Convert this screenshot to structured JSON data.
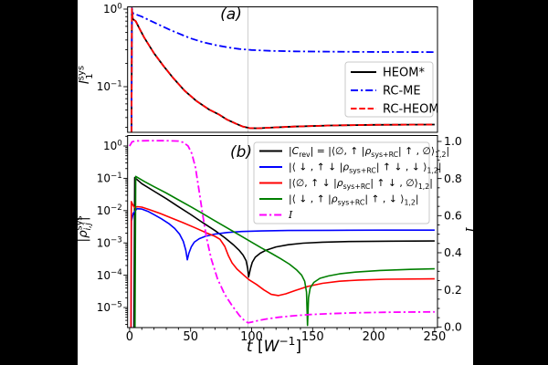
{
  "figure": {
    "background": "#000000",
    "paper_color": "#ffffff",
    "gridline_color": "#c9c9c9",
    "panel_a_letter": "(a)",
    "panel_b_letter": "(b)"
  },
  "axes": {
    "xlabel": "t [W^-1]",
    "xlabel_segments": [
      {
        "t": "t",
        "i": 1
      },
      {
        "t": " ["
      },
      {
        "t": "W",
        "i": 1
      },
      {
        "t": "−1",
        "v": "sup"
      },
      {
        "t": "]"
      }
    ],
    "x_ticks": [
      0,
      50,
      100,
      150,
      200,
      250
    ],
    "x_minor_step": 10,
    "panel_a_ylabel": "l_1^sys",
    "panel_a_ylabel_segments": [
      {
        "t": "l",
        "i": 1
      },
      {
        "t": "sys",
        "v": "sup"
      },
      {
        "t": "1",
        "v": "sub",
        "dx": -15
      }
    ],
    "panel_a_yticks_exp": [
      0,
      -1
    ],
    "panel_b_ylabel": "|rho_i,j^sys|",
    "panel_b_ylabel_segments": [
      {
        "t": "|"
      },
      {
        "t": "ρ",
        "i": 1
      },
      {
        "t": "sys",
        "v": "sup"
      },
      {
        "t": "i,j",
        "v": "sub",
        "dx": -16,
        "i": 1
      },
      {
        "t": "|",
        "dx": 2
      }
    ],
    "panel_b_yticks_exp": [
      0,
      -1,
      -2,
      -3,
      -4,
      -5
    ],
    "right_ylabel": "I",
    "right_ylabel_segments": [
      {
        "t": "I",
        "i": 1,
        "serif": 1
      }
    ],
    "right_ticks": [
      0.0,
      0.2,
      0.4,
      0.6,
      0.8,
      1.0
    ],
    "right_minor_step": 0.05,
    "axvline_t": 97
  },
  "legend_a": {
    "entries": [
      {
        "label": "HEOM*",
        "color": "#000000",
        "dash": "solid"
      },
      {
        "label": "RC-ME",
        "color": "#0000ff",
        "dash": "dashdot"
      },
      {
        "label": "RC-HEOM",
        "color": "#ff0000",
        "dash": "dashed"
      }
    ]
  },
  "legend_b": {
    "entries": [
      {
        "label": "|C_rev| = |<0,up|rho_sys+RC|up,0>_1,2|",
        "color": "#000000",
        "dash": "solid",
        "segments": [
          {
            "t": "|"
          },
          {
            "t": "C",
            "i": 1
          },
          {
            "t": "rev",
            "v": "sub"
          },
          {
            "t": "| = |⟨∅, ↑ |"
          },
          {
            "t": "ρ",
            "i": 1
          },
          {
            "t": "sys+RC",
            "v": "sub"
          },
          {
            "t": "| ↑ , ∅⟩"
          },
          {
            "t": "1,2",
            "v": "sub"
          },
          {
            "t": "|"
          }
        ]
      },
      {
        "label": "|<down, up down|rho_sys+RC|up down, down>_1,2|",
        "color": "#0000ff",
        "dash": "solid",
        "segments": [
          {
            "t": "|⟨ ↓ , ↑ ↓ |"
          },
          {
            "t": "ρ",
            "i": 1
          },
          {
            "t": "sys+RC",
            "v": "sub"
          },
          {
            "t": "| ↑ ↓ , ↓ ⟩"
          },
          {
            "t": "1,2",
            "v": "sub"
          },
          {
            "t": "|"
          }
        ]
      },
      {
        "label": "|<0, up down|rho_sys+RC|up down, 0>_1,2|",
        "color": "#ff0000",
        "dash": "solid",
        "segments": [
          {
            "t": "|⟨∅, ↑ ↓ |"
          },
          {
            "t": "ρ",
            "i": 1
          },
          {
            "t": "sys+RC",
            "v": "sub"
          },
          {
            "t": "| ↑ ↓ , ∅⟩"
          },
          {
            "t": "1,2",
            "v": "sub"
          },
          {
            "t": "|"
          }
        ]
      },
      {
        "label": "|<down, up|rho_sys+RC|up, down>_1,2|",
        "color": "#007f00",
        "dash": "solid",
        "segments": [
          {
            "t": "|⟨ ↓ , ↑ |"
          },
          {
            "t": "ρ",
            "i": 1
          },
          {
            "t": "sys+RC",
            "v": "sub"
          },
          {
            "t": "| ↑ , ↓ ⟩"
          },
          {
            "t": "1,2",
            "v": "sub"
          },
          {
            "t": "|"
          }
        ]
      },
      {
        "label": "I",
        "color": "#ff00ff",
        "dash": "dashdot",
        "segments": [
          {
            "t": "I",
            "i": 1,
            "serif": 1
          }
        ]
      }
    ]
  },
  "chart_data": [
    {
      "type": "line",
      "panel": "a",
      "title": "(a)",
      "ylabel": "l_1^sys",
      "yscale": "log",
      "xlim": [
        -1.6,
        252.3
      ],
      "ylim": [
        0.0258,
        1.07
      ],
      "axvline": 97,
      "legend_position": "center right",
      "series": [
        {
          "name": "HEOM*",
          "color": "#000000",
          "dash": "solid",
          "width": 1.8,
          "axis": "left",
          "points": [
            [
              1.6,
              0.026
            ],
            [
              1.9,
              1.02
            ],
            [
              2.6,
              0.745
            ],
            [
              5,
              0.7
            ],
            [
              8,
              0.565
            ],
            [
              12,
              0.43
            ],
            [
              20,
              0.27
            ],
            [
              28,
              0.183
            ],
            [
              36,
              0.128
            ],
            [
              45,
              0.089
            ],
            [
              55,
              0.065
            ],
            [
              65,
              0.051
            ],
            [
              73,
              0.044
            ],
            [
              80,
              0.0375
            ],
            [
              87,
              0.0335
            ],
            [
              93,
              0.0305
            ],
            [
              98,
              0.0293
            ],
            [
              105,
              0.0291
            ],
            [
              115,
              0.0296
            ],
            [
              135,
              0.0306
            ],
            [
              165,
              0.0316
            ],
            [
              200,
              0.0322
            ],
            [
              250,
              0.0325
            ]
          ]
        },
        {
          "name": "RC-ME",
          "color": "#0000ff",
          "dash": "dashdot",
          "width": 1.8,
          "axis": "left",
          "points": [
            [
              1.6,
              0.026
            ],
            [
              1.9,
              1.03
            ],
            [
              3,
              0.875
            ],
            [
              6,
              0.845
            ],
            [
              10,
              0.8
            ],
            [
              16,
              0.72
            ],
            [
              24,
              0.63
            ],
            [
              32,
              0.55
            ],
            [
              40,
              0.487
            ],
            [
              50,
              0.42
            ],
            [
              60,
              0.375
            ],
            [
              70,
              0.345
            ],
            [
              80,
              0.322
            ],
            [
              90,
              0.306
            ],
            [
              100,
              0.297
            ],
            [
              115,
              0.29
            ],
            [
              135,
              0.285
            ],
            [
              170,
              0.282
            ],
            [
              210,
              0.28
            ],
            [
              250,
              0.279
            ]
          ]
        },
        {
          "name": "RC-HEOM",
          "color": "#ff0000",
          "dash": "dashed",
          "width": 1.8,
          "axis": "left",
          "points_from": 0,
          "points": []
        }
      ]
    },
    {
      "type": "line",
      "panel": "b",
      "title": "(b)",
      "ylabel": "|rho_i,j^sys|",
      "ylabel_right": "I",
      "yscale": "log",
      "xlim": [
        -1.6,
        252.3
      ],
      "ylim": [
        2.44e-06,
        2.05
      ],
      "ylim_right": [
        0.0,
        1.03
      ],
      "axvline": 97,
      "legend_position": "upper right",
      "series": [
        {
          "name": "|C_rev|",
          "color": "#000000",
          "dash": "solid",
          "width": 1.6,
          "axis": "left",
          "points": [
            [
              3.6,
              2.4e-06
            ],
            [
              4.2,
              0.105
            ],
            [
              10,
              0.068
            ],
            [
              20,
              0.04
            ],
            [
              30,
              0.0235
            ],
            [
              40,
              0.0133
            ],
            [
              50,
              0.0076
            ],
            [
              60,
              0.0042
            ],
            [
              70,
              0.0024
            ],
            [
              78,
              0.00145
            ],
            [
              85,
              0.00088
            ],
            [
              90,
              0.00058
            ],
            [
              93,
              0.00042
            ],
            [
              95.5,
              0.00028
            ],
            [
              96.8,
              0.00016
            ],
            [
              97.5,
              8.8e-05
            ],
            [
              99,
              0.00016
            ],
            [
              100.5,
              0.00025
            ],
            [
              103,
              0.00036
            ],
            [
              107,
              0.00048
            ],
            [
              112,
              0.0006
            ],
            [
              120,
              0.00075
            ],
            [
              130,
              0.00088
            ],
            [
              142,
              0.00098
            ],
            [
              158,
              0.00105
            ],
            [
              180,
              0.0011
            ],
            [
              215,
              0.00113
            ],
            [
              250,
              0.00115
            ]
          ]
        },
        {
          "name": "rho(down,updown)",
          "color": "#0000ff",
          "dash": "solid",
          "width": 1.6,
          "axis": "left",
          "points": [
            [
              1.2,
              2.4e-06
            ],
            [
              1.5,
              0.0048
            ],
            [
              3,
              0.0083
            ],
            [
              6,
              0.0115
            ],
            [
              10,
              0.0112
            ],
            [
              15,
              0.0095
            ],
            [
              20,
              0.0075
            ],
            [
              26,
              0.0056
            ],
            [
              32,
              0.004
            ],
            [
              37,
              0.0028
            ],
            [
              41,
              0.00185
            ],
            [
              44,
              0.00112
            ],
            [
              46,
              0.0006
            ],
            [
              47.3,
              0.0003
            ],
            [
              48.6,
              0.00048
            ],
            [
              50.5,
              0.00075
            ],
            [
              53,
              0.00105
            ],
            [
              57,
              0.00135
            ],
            [
              62,
              0.0016
            ],
            [
              70,
              0.00188
            ],
            [
              80,
              0.0021
            ],
            [
              92,
              0.00225
            ],
            [
              108,
              0.00235
            ],
            [
              130,
              0.00242
            ],
            [
              165,
              0.00246
            ],
            [
              210,
              0.00248
            ],
            [
              250,
              0.00249
            ]
          ]
        },
        {
          "name": "rho(0,updown)",
          "color": "#ff0000",
          "dash": "solid",
          "width": 1.6,
          "axis": "left",
          "points": [
            [
              1.1,
              2.4e-06
            ],
            [
              1.4,
              0.019
            ],
            [
              2.5,
              0.0155
            ],
            [
              4,
              0.0125
            ],
            [
              6.5,
              0.0132
            ],
            [
              10,
              0.0128
            ],
            [
              16,
              0.0108
            ],
            [
              25,
              0.0082
            ],
            [
              34,
              0.006
            ],
            [
              44,
              0.0042
            ],
            [
              54,
              0.0029
            ],
            [
              63,
              0.00205
            ],
            [
              70,
              0.0016
            ],
            [
              74,
              0.0013
            ],
            [
              78,
              0.00078
            ],
            [
              81,
              0.0004
            ],
            [
              84,
              0.00024
            ],
            [
              88,
              0.000155
            ],
            [
              93,
              0.000105
            ],
            [
              98,
              7.2e-05
            ],
            [
              104,
              5.2e-05
            ],
            [
              110,
              3.5e-05
            ],
            [
              116,
              2.55e-05
            ],
            [
              122,
              2.35e-05
            ],
            [
              128,
              2.65e-05
            ],
            [
              136,
              3.4e-05
            ],
            [
              146,
              4.5e-05
            ],
            [
              158,
              5.6e-05
            ],
            [
              172,
              6.5e-05
            ],
            [
              188,
              7.1e-05
            ],
            [
              210,
              7.5e-05
            ],
            [
              250,
              7.7e-05
            ]
          ]
        },
        {
          "name": "rho(down,up)",
          "color": "#007f00",
          "dash": "solid",
          "width": 1.6,
          "axis": "left",
          "points": [
            [
              4.4,
              2.4e-06
            ],
            [
              5,
              0.115
            ],
            [
              12,
              0.08
            ],
            [
              20,
              0.055
            ],
            [
              30,
              0.035
            ],
            [
              40,
              0.0215
            ],
            [
              50,
              0.0133
            ],
            [
              60,
              0.008
            ],
            [
              70,
              0.0048
            ],
            [
              80,
              0.0029
            ],
            [
              90,
              0.00175
            ],
            [
              100,
              0.00105
            ],
            [
              108,
              0.0007
            ],
            [
              116,
              0.00048
            ],
            [
              124,
              0.00032
            ],
            [
              131,
              0.00022
            ],
            [
              137,
              0.000145
            ],
            [
              141,
              0.0001
            ],
            [
              143.5,
              6.5e-05
            ],
            [
              145,
              3e-05
            ],
            [
              145.8,
              2.8e-06
            ],
            [
              146.6,
              2e-05
            ],
            [
              148,
              4e-05
            ],
            [
              151,
              6e-05
            ],
            [
              156,
              8e-05
            ],
            [
              163,
              9.5e-05
            ],
            [
              172,
              0.00011
            ],
            [
              185,
              0.000125
            ],
            [
              205,
              0.00014
            ],
            [
              230,
              0.000152
            ],
            [
              250,
              0.000158
            ]
          ]
        },
        {
          "name": "I",
          "color": "#ff00ff",
          "dash": "dashdot",
          "width": 1.8,
          "axis": "right",
          "points": [
            [
              0,
              0.975
            ],
            [
              2,
              0.998
            ],
            [
              6,
              1.003
            ],
            [
              15,
              1.004
            ],
            [
              30,
              1.004
            ],
            [
              40,
              1.002
            ],
            [
              44,
              0.995
            ],
            [
              48,
              0.975
            ],
            [
              51,
              0.935
            ],
            [
              54,
              0.86
            ],
            [
              57,
              0.73
            ],
            [
              60,
              0.6
            ],
            [
              63,
              0.48
            ],
            [
              67,
              0.365
            ],
            [
              72,
              0.26
            ],
            [
              78,
              0.175
            ],
            [
              84,
              0.115
            ],
            [
              90,
              0.062
            ],
            [
              94,
              0.035
            ],
            [
              97,
              0.022
            ],
            [
              100,
              0.026
            ],
            [
              105,
              0.034
            ],
            [
              112,
              0.043
            ],
            [
              122,
              0.052
            ],
            [
              134,
              0.06
            ],
            [
              148,
              0.067
            ],
            [
              165,
              0.072
            ],
            [
              185,
              0.076
            ],
            [
              210,
              0.079
            ],
            [
              250,
              0.081
            ]
          ]
        }
      ]
    }
  ]
}
